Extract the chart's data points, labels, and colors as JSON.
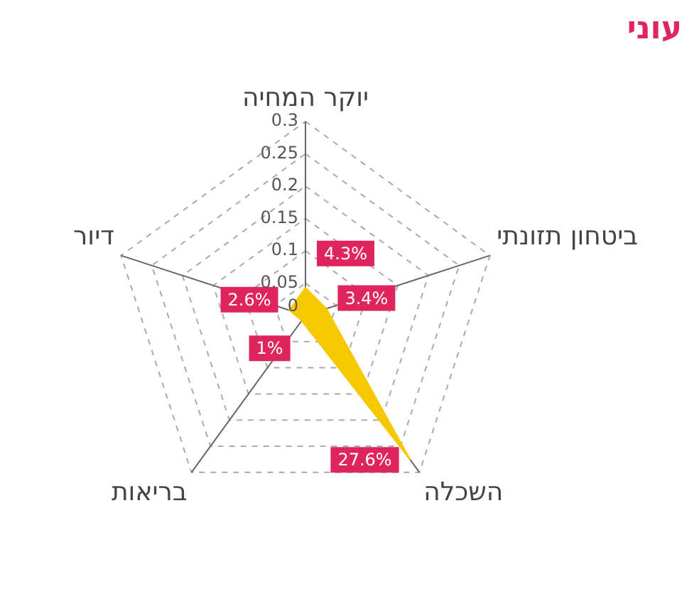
{
  "chart_data": {
    "type": "radar",
    "title": "עוני",
    "categories": [
      "יוקר המחיה",
      "ביטחון תזונתי",
      "השכלה",
      "בריאות",
      "דיור"
    ],
    "series": [
      {
        "color": "#f5c800",
        "values": [
          0.043,
          0.034,
          0.276,
          0.01,
          0.026
        ],
        "value_labels": [
          "4.3%",
          "3.4%",
          "27.6%",
          "1%",
          "2.6%"
        ]
      }
    ],
    "ylim": [
      0,
      0.3
    ],
    "yticks": [
      0,
      0.05,
      0.1,
      0.15,
      0.2,
      0.25,
      0.3
    ],
    "grid": true,
    "legend": false,
    "marker": "none"
  }
}
